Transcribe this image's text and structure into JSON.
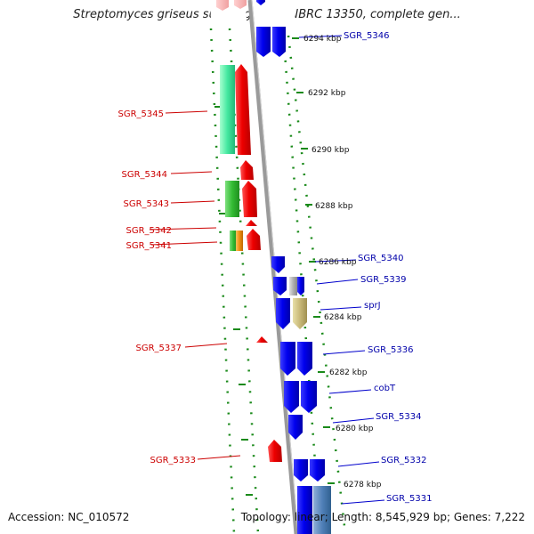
{
  "title": "Streptomyces griseus subsp. griseus NBRC 13350, complete gen...",
  "footer": {
    "accession_label": "Accession:",
    "accession": "NC_010572",
    "topology_label": "Topology:",
    "topology": "linear;",
    "length_label": "Length:",
    "length": "8,545,929 bp;",
    "genes_label": "Genes:",
    "genes": "7,222"
  },
  "colors": {
    "reverse_label": "#cc0000",
    "forward_label": "#0000aa",
    "backbone": "#999999",
    "tick": "#1a8a1a"
  },
  "genes_reverse": [
    {
      "name": "SGR_5345"
    },
    {
      "name": "SGR_5344"
    },
    {
      "name": "SGR_5343"
    },
    {
      "name": "SGR_5342"
    },
    {
      "name": "SGR_5341"
    },
    {
      "name": "SGR_5337"
    },
    {
      "name": "SGR_5333"
    }
  ],
  "genes_forward": [
    {
      "name": "SGR_5346"
    },
    {
      "name": "SGR_5340"
    },
    {
      "name": "SGR_5339"
    },
    {
      "name": "sprJ"
    },
    {
      "name": "SGR_5336"
    },
    {
      "name": "cobT"
    },
    {
      "name": "SGR_5334"
    },
    {
      "name": "SGR_5332"
    },
    {
      "name": "SGR_5331"
    }
  ],
  "scale_labels": [
    "6294 kbp",
    "6292 kbp",
    "6290 kbp",
    "6288 kbp",
    "6286 kbp",
    "6284 kbp",
    "6282 kbp",
    "6280 kbp",
    "6278 kbp"
  ]
}
